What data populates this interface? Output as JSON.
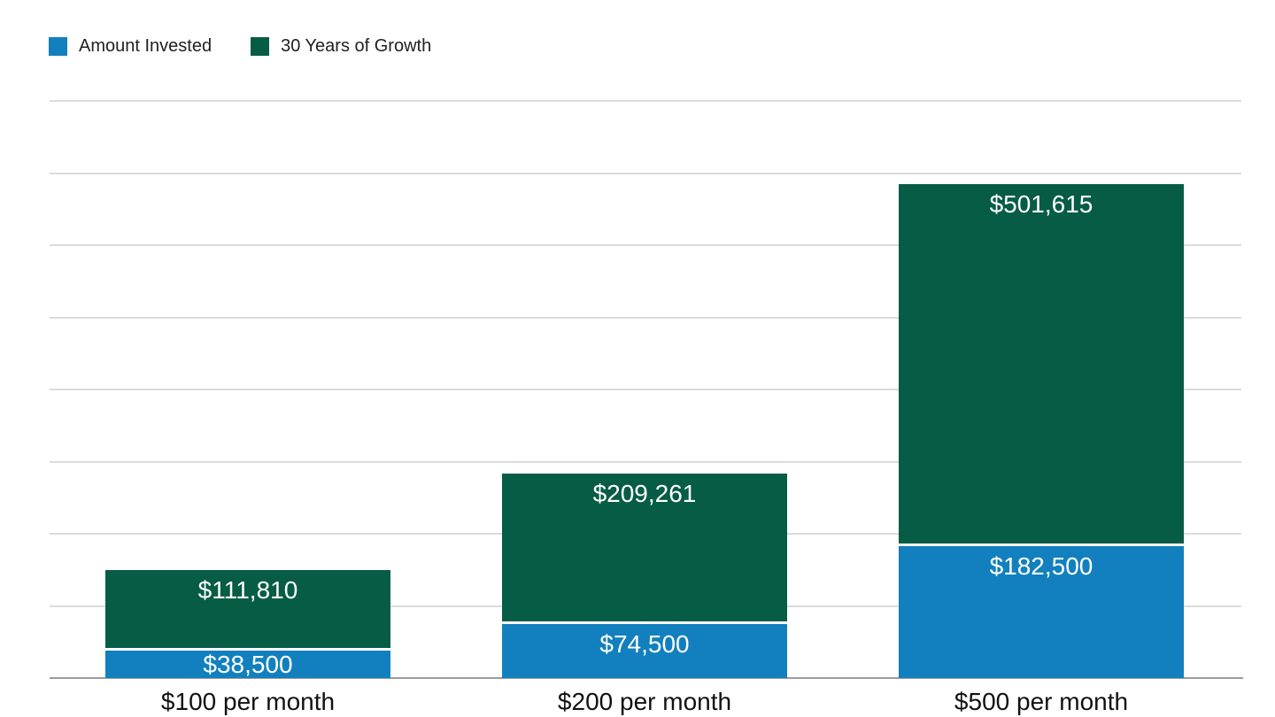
{
  "chart_data": {
    "type": "bar",
    "variant": "stacked-column",
    "title": "",
    "xlabel": "",
    "ylabel": "",
    "categories": [
      "$100 per month",
      "$200 per month",
      "$500 per month"
    ],
    "series": [
      {
        "name": "Amount Invested",
        "color": "#1280BE",
        "values": [
          38500,
          74500,
          182500
        ],
        "labels": [
          "$38,500",
          "$74,500",
          "$182,500"
        ]
      },
      {
        "name": "30 Years of Growth",
        "color": "#075C46",
        "values": [
          111810,
          209261,
          501615
        ],
        "labels": [
          "$111,810",
          "$209,261",
          "$501,615"
        ]
      }
    ],
    "totals": [
      150310,
      283761,
      684115
    ],
    "ylim": [
      0,
      800000
    ],
    "gridline_interval": 100000,
    "y_tick_labels_visible": false,
    "grid": "horizontal",
    "legend_position": "top-left",
    "value_label_color": "#ffffff"
  },
  "colors": {
    "background": "#ffffff",
    "gridline": "#dbdbdb",
    "axis_line": "#9c9c9c",
    "legend_text": "#202124",
    "category_text": "#111111"
  }
}
